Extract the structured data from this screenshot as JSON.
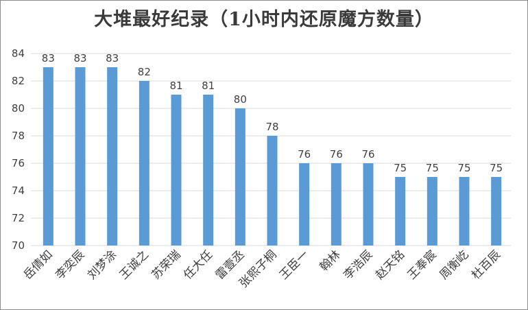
{
  "chart_data": {
    "type": "bar",
    "title": "大堆最好纪录（1小时内还原魔方数量）",
    "categories": [
      "岳倩如",
      "李奕辰",
      "刘梦涂",
      "王诚之",
      "苏荣瑞",
      "任大任",
      "雷壹丞",
      "张熙子桐",
      "王臣一",
      "翰林",
      "李浩辰",
      "赵天铭",
      "王奉宸",
      "周衡屹",
      "杜百辰"
    ],
    "values": [
      83,
      83,
      83,
      82,
      81,
      81,
      80,
      78,
      76,
      76,
      76,
      75,
      75,
      75,
      75
    ],
    "ylim": [
      70,
      84
    ],
    "yticks": [
      "70",
      "72",
      "74",
      "76",
      "78",
      "80",
      "82",
      "84"
    ],
    "xlabel": "",
    "ylabel": "",
    "grid": true,
    "bar_color": "#5b9bd5",
    "grid_color": "#d9d9d9"
  }
}
